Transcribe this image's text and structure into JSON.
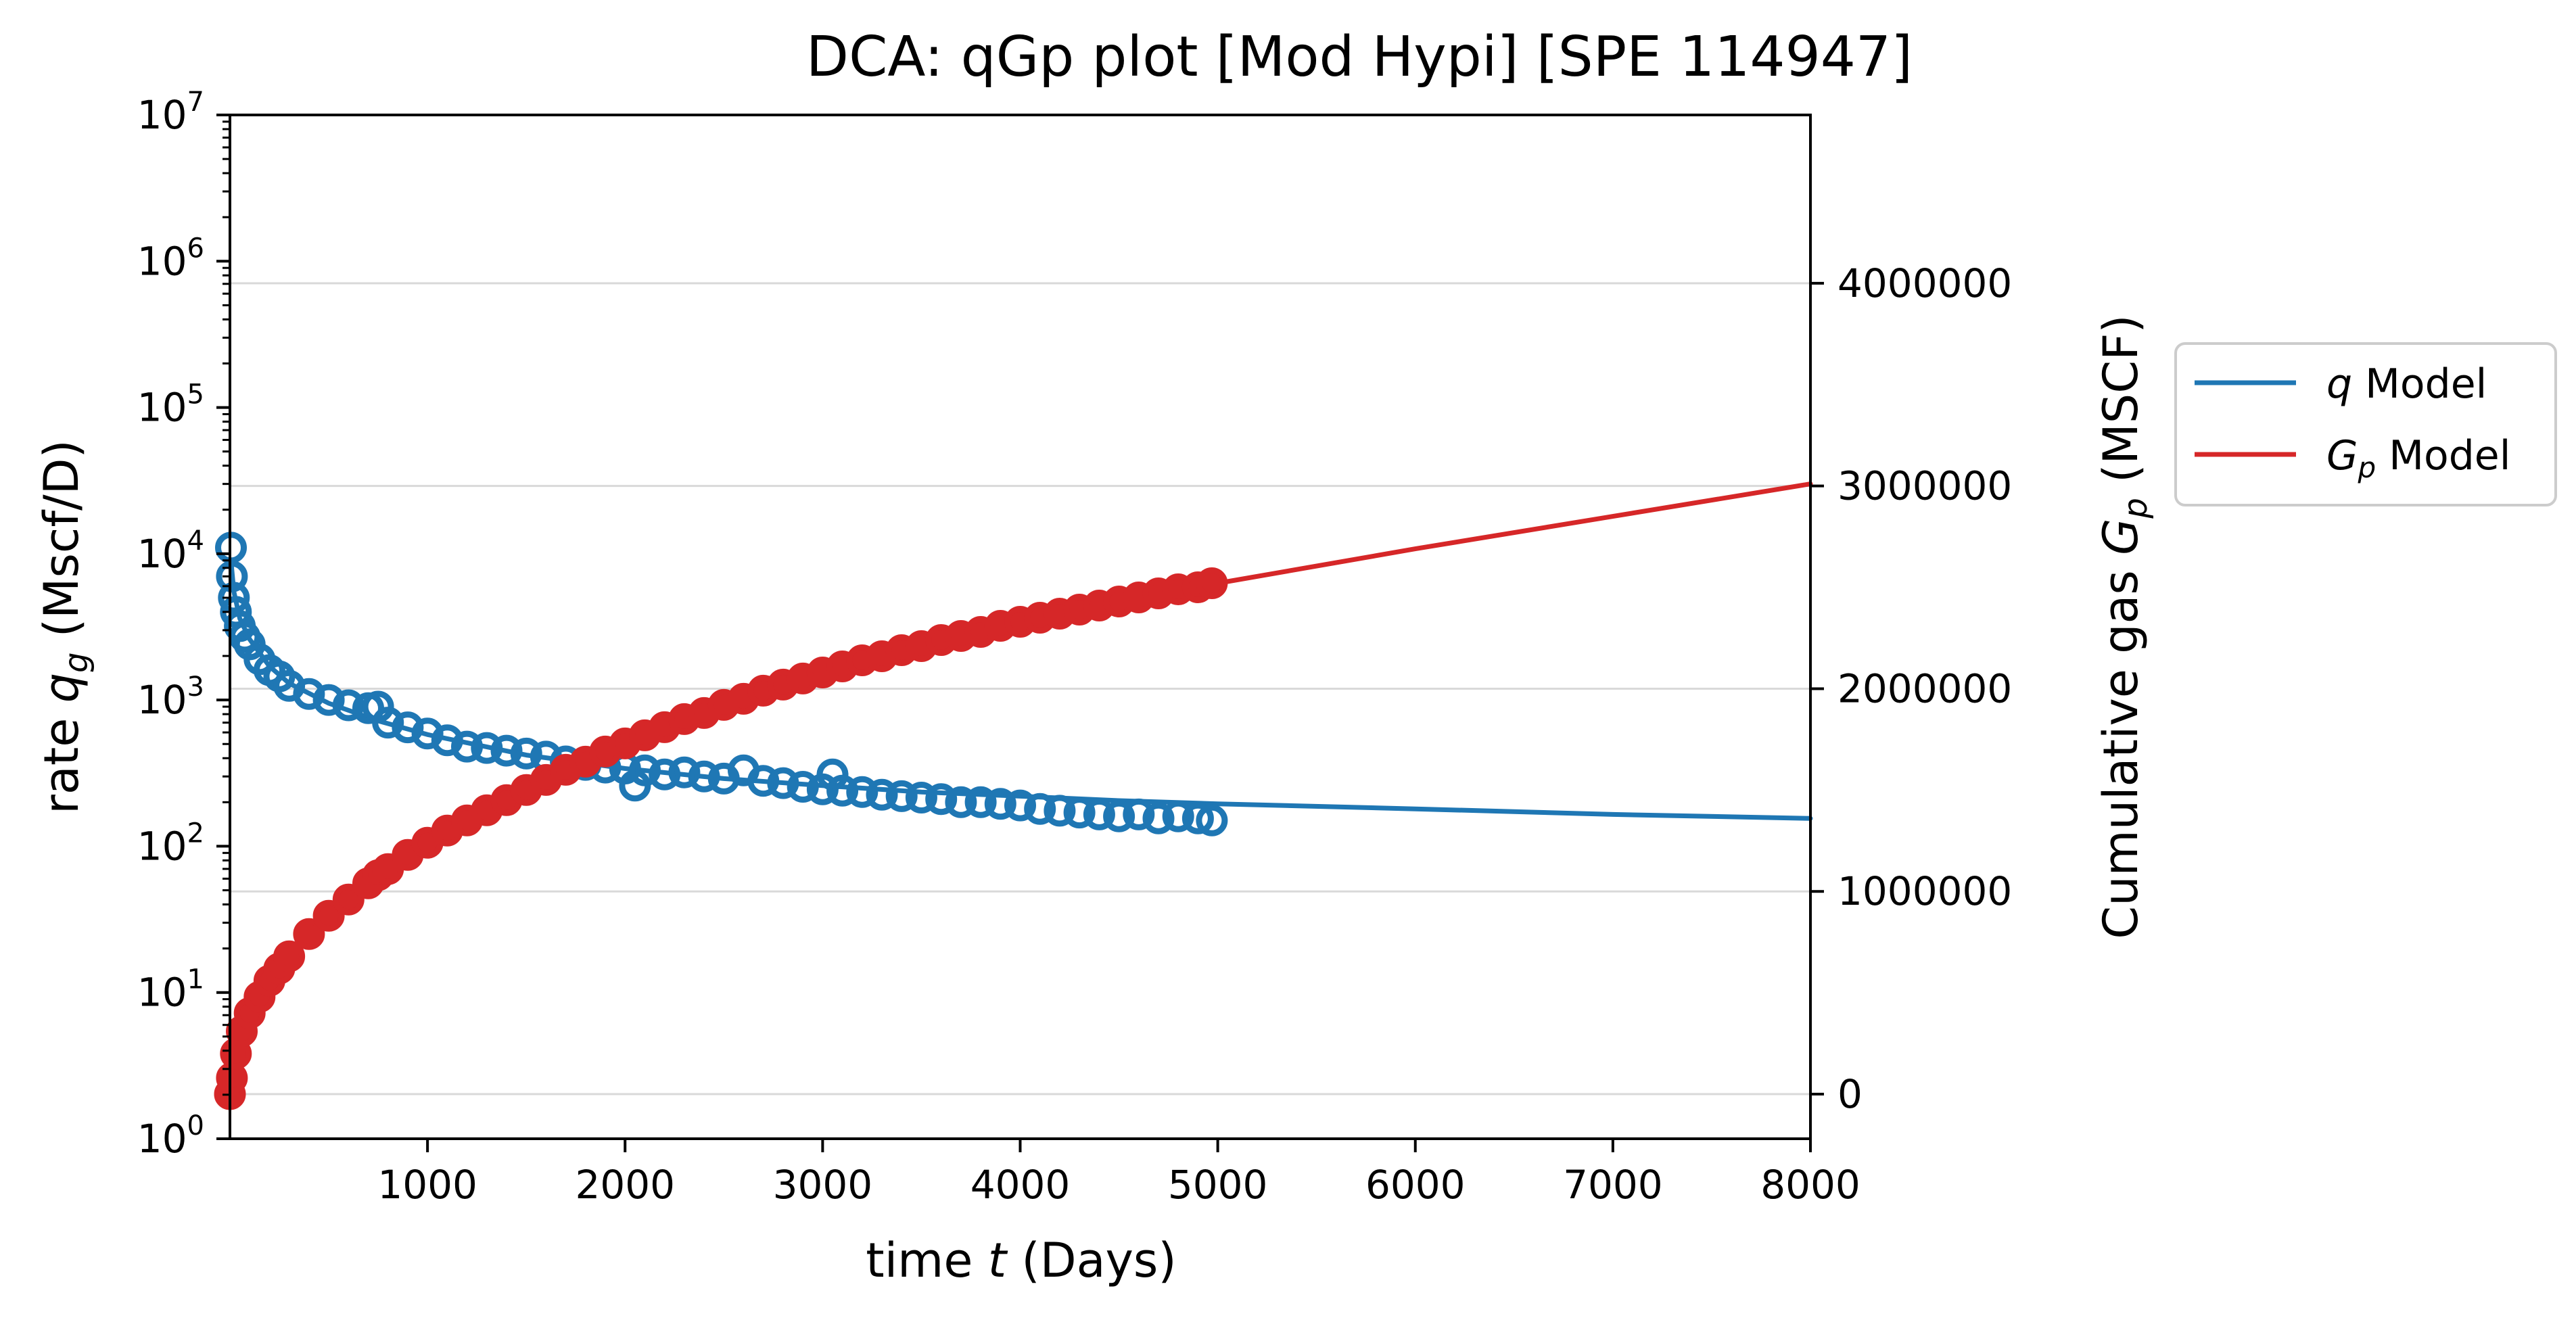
{
  "chart_data": {
    "type": "line",
    "title": "DCA: qGp plot  [Mod Hypi]  [SPE 114947]",
    "xlabel_prefix": "time ",
    "xlabel_var": "t",
    "xlabel_suffix": " (Days)",
    "ylabel_prefix": "rate ",
    "ylabel_var": "q",
    "ylabel_sub": "g",
    "ylabel_suffix": " (Mscf/D)",
    "y2label_prefix": "Cumulative gas ",
    "y2label_var": "G",
    "y2label_sub": "p",
    "y2label_suffix": " (MSCF)",
    "xlim": [
      0,
      8000
    ],
    "ylim": [
      1,
      10000000
    ],
    "yscale": "log",
    "y2lim": [
      -220000,
      4830000
    ],
    "x_ticks": [
      1000,
      2000,
      3000,
      4000,
      5000,
      6000,
      7000,
      8000
    ],
    "x_tick_labels": [
      "1000",
      "2000",
      "3000",
      "4000",
      "5000",
      "6000",
      "7000",
      "8000"
    ],
    "y_ticks": [
      1,
      10,
      100,
      1000,
      10000,
      100000,
      1000000,
      10000000
    ],
    "y_tick_exponents": [
      "0",
      "1",
      "2",
      "3",
      "4",
      "5",
      "6",
      "7"
    ],
    "y_tick_base": "10",
    "y2_ticks": [
      0,
      1000000,
      2000000,
      3000000,
      4000000
    ],
    "y2_tick_labels": [
      "0",
      "1000000",
      "2000000",
      "3000000",
      "4000000"
    ],
    "grid": "horizontal lines at right-axis ticks",
    "legend_position": "outside-right",
    "legend": [
      {
        "var": "q",
        "sub": "",
        "label": " Model",
        "color": "#1f77b4"
      },
      {
        "var": "G",
        "sub": "p",
        "label": " Model",
        "color": "#d62728"
      }
    ],
    "series": [
      {
        "name": "q Model",
        "axis": "left",
        "kind": "line",
        "color": "#1f77b4",
        "x": [
          5,
          20,
          50,
          100,
          200,
          300,
          500,
          750,
          1000,
          1500,
          2000,
          2500,
          3000,
          3500,
          4000,
          4500,
          5000,
          6000,
          7000,
          8000
        ],
        "y": [
          9000,
          5500,
          3600,
          2600,
          1700,
          1300,
          950,
          720,
          580,
          420,
          340,
          290,
          260,
          235,
          220,
          205,
          195,
          180,
          165,
          155
        ]
      },
      {
        "name": "q data",
        "axis": "left",
        "kind": "markers",
        "color": "#1f77b4",
        "x": [
          5,
          10,
          20,
          30,
          50,
          75,
          100,
          150,
          200,
          250,
          300,
          400,
          500,
          600,
          700,
          750,
          800,
          900,
          1000,
          1100,
          1200,
          1300,
          1400,
          1500,
          1600,
          1700,
          1800,
          1900,
          2000,
          2050,
          2100,
          2200,
          2300,
          2400,
          2500,
          2600,
          2700,
          2800,
          2900,
          3000,
          3050,
          3100,
          3200,
          3300,
          3400,
          3500,
          3600,
          3700,
          3800,
          3900,
          4000,
          4100,
          4200,
          4300,
          4400,
          4500,
          4600,
          4700,
          4800,
          4900,
          4970
        ],
        "y": [
          11000,
          7000,
          5000,
          4000,
          3200,
          2700,
          2400,
          1900,
          1600,
          1450,
          1250,
          1100,
          1000,
          920,
          880,
          900,
          700,
          650,
          590,
          530,
          480,
          470,
          450,
          430,
          410,
          380,
          360,
          345,
          340,
          260,
          330,
          310,
          320,
          300,
          290,
          330,
          280,
          270,
          255,
          245,
          310,
          240,
          235,
          225,
          220,
          215,
          210,
          200,
          200,
          195,
          190,
          180,
          175,
          170,
          165,
          160,
          165,
          155,
          160,
          155,
          150
        ]
      },
      {
        "name": "Gp Model",
        "axis": "right",
        "kind": "line",
        "color": "#d62728",
        "x": [
          0,
          10,
          30,
          60,
          100,
          200,
          300,
          500,
          750,
          1000,
          1500,
          2000,
          2500,
          3000,
          3500,
          4000,
          4500,
          5000,
          6000,
          7000,
          8000
        ],
        "y": [
          0,
          80000,
          200000,
          310000,
          400000,
          560000,
          680000,
          880000,
          1080000,
          1240000,
          1500000,
          1730000,
          1920000,
          2080000,
          2210000,
          2330000,
          2430000,
          2520000,
          2690000,
          2850000,
          3010000
        ]
      },
      {
        "name": "Gp data",
        "axis": "right",
        "kind": "markers",
        "color": "#d62728",
        "x": [
          0,
          10,
          30,
          60,
          100,
          150,
          200,
          250,
          300,
          400,
          500,
          600,
          700,
          750,
          800,
          900,
          1000,
          1100,
          1200,
          1300,
          1400,
          1500,
          1600,
          1700,
          1800,
          1900,
          2000,
          2100,
          2200,
          2300,
          2400,
          2500,
          2600,
          2700,
          2800,
          2900,
          3000,
          3100,
          3200,
          3300,
          3400,
          3500,
          3600,
          3700,
          3800,
          3900,
          4000,
          4100,
          4200,
          4300,
          4400,
          4500,
          4600,
          4700,
          4800,
          4900,
          4970
        ],
        "y": [
          0,
          80000,
          200000,
          310000,
          400000,
          480000,
          560000,
          620000,
          680000,
          790000,
          880000,
          960000,
          1040000,
          1080000,
          1110000,
          1180000,
          1240000,
          1300000,
          1350000,
          1400000,
          1450000,
          1500000,
          1550000,
          1600000,
          1640000,
          1690000,
          1730000,
          1770000,
          1810000,
          1850000,
          1880000,
          1920000,
          1950000,
          1990000,
          2020000,
          2050000,
          2080000,
          2110000,
          2140000,
          2160000,
          2190000,
          2210000,
          2240000,
          2260000,
          2280000,
          2310000,
          2330000,
          2350000,
          2370000,
          2390000,
          2410000,
          2430000,
          2450000,
          2470000,
          2490000,
          2500000,
          2520000
        ]
      }
    ]
  }
}
